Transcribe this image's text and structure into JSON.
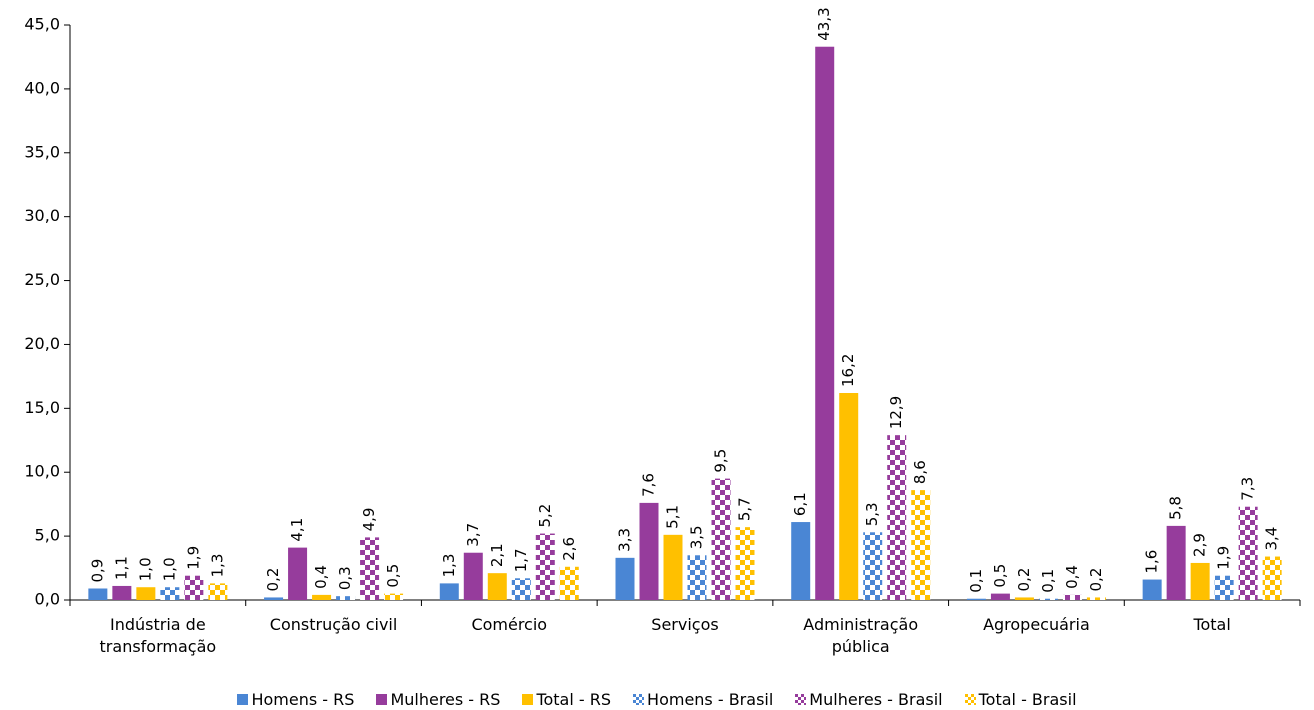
{
  "chart_data": {
    "type": "bar",
    "categories": [
      "Indústria de transformação",
      "Construção civil",
      "Comércio",
      "Serviços",
      "Administração pública",
      "Agropecuária",
      "Total"
    ],
    "series": [
      {
        "name": "Homens - RS",
        "color": "#4a86d4",
        "pattern": "solid",
        "values": [
          0.9,
          0.2,
          1.3,
          3.3,
          6.1,
          0.1,
          1.6
        ],
        "value_labels": [
          "0,9",
          "0,2",
          "1,3",
          "3,3",
          "6,1",
          "0,1",
          "1,6"
        ]
      },
      {
        "name": "Mulheres - RS",
        "color": "#963c9c",
        "pattern": "solid",
        "values": [
          1.1,
          4.1,
          3.7,
          7.6,
          43.3,
          0.5,
          5.8
        ],
        "value_labels": [
          "1,1",
          "4,1",
          "3,7",
          "7,6",
          "43,3",
          "0,5",
          "5,8"
        ]
      },
      {
        "name": "Total - RS",
        "color": "#ffc000",
        "pattern": "solid",
        "values": [
          1.0,
          0.4,
          2.1,
          5.1,
          16.2,
          0.2,
          2.9
        ],
        "value_labels": [
          "1,0",
          "0,4",
          "2,1",
          "5,1",
          "16,2",
          "0,2",
          "2,9"
        ]
      },
      {
        "name": "Homens - Brasil",
        "color": "#4a86d4",
        "pattern": "checker",
        "values": [
          1.0,
          0.3,
          1.7,
          3.5,
          5.3,
          0.1,
          1.9
        ],
        "value_labels": [
          "1,0",
          "0,3",
          "1,7",
          "3,5",
          "5,3",
          "0,1",
          "1,9"
        ]
      },
      {
        "name": "Mulheres - Brasil",
        "color": "#963c9c",
        "pattern": "checker",
        "values": [
          1.9,
          4.9,
          5.2,
          9.5,
          12.9,
          0.4,
          7.3
        ],
        "value_labels": [
          "1,9",
          "4,9",
          "5,2",
          "9,5",
          "12,9",
          "0,4",
          "7,3"
        ]
      },
      {
        "name": "Total - Brasil",
        "color": "#ffc000",
        "pattern": "checker",
        "values": [
          1.3,
          0.5,
          2.6,
          5.7,
          8.6,
          0.2,
          3.4
        ],
        "value_labels": [
          "1,3",
          "0,5",
          "2,6",
          "5,7",
          "8,6",
          "0,2",
          "3,4"
        ]
      }
    ],
    "ylim": [
      0,
      45
    ],
    "yticks": [
      {
        "value": 0,
        "label": "0,0"
      },
      {
        "value": 5,
        "label": "5,0"
      },
      {
        "value": 10,
        "label": "10,0"
      },
      {
        "value": 15,
        "label": "15,0"
      },
      {
        "value": 20,
        "label": "20,0"
      },
      {
        "value": 25,
        "label": "25,0"
      },
      {
        "value": 30,
        "label": "30,0"
      },
      {
        "value": 35,
        "label": "35,0"
      },
      {
        "value": 40,
        "label": "40,0"
      },
      {
        "value": 45,
        "label": "45,0"
      }
    ],
    "legend": "bottom"
  }
}
